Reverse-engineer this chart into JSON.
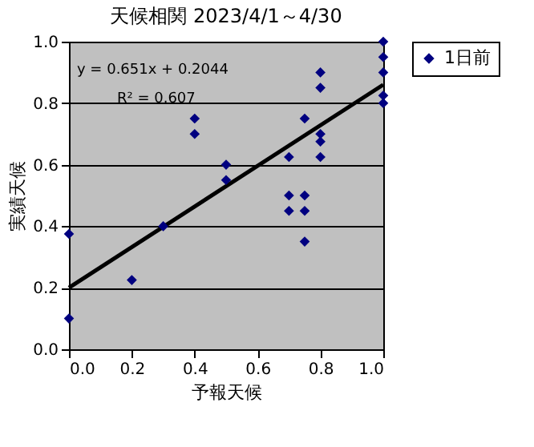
{
  "chart_data": {
    "type": "scatter",
    "title": "天候相関 2023/4/1～4/30",
    "xlabel": "予報天候",
    "ylabel": "実績天候",
    "series": [
      {
        "type": "line",
        "color": "#000000",
        "marker": "none",
        "line_style": "solid",
        "x": [
          0,
          1
        ],
        "values": [
          0.2,
          0.86
        ]
      },
      {
        "name": "1日前",
        "color": "#000080",
        "marker": "diamond",
        "x": [
          0,
          0,
          0.2,
          0.3,
          0.4,
          0.4,
          0.5,
          0.5,
          0.7,
          0.7,
          0.7,
          0.75,
          0.75,
          0.75,
          0.75,
          0.8,
          0.8,
          0.8,
          0.8,
          0.8,
          1,
          1,
          1,
          1,
          1
        ],
        "values": [
          0.375,
          0.1,
          0.225,
          0.4,
          0.75,
          0.7,
          0.6,
          0.55,
          0.625,
          0.5,
          0.45,
          0.75,
          0.5,
          0.45,
          0.35,
          0.9,
          0.85,
          0.7,
          0.675,
          0.625,
          1,
          0.95,
          0.9,
          0.825,
          0.8
        ]
      }
    ],
    "xlim": [
      0,
      1
    ],
    "ylim": [
      0,
      1
    ],
    "xticks": [
      {
        "value": 0,
        "label": "0.0"
      },
      {
        "value": 0.2,
        "label": "0.2"
      },
      {
        "value": 0.4,
        "label": "0.4"
      },
      {
        "value": 0.6,
        "label": "0.6"
      },
      {
        "value": 0.8,
        "label": "0.8"
      },
      {
        "value": 1,
        "label": "1.0"
      }
    ],
    "yticks": [
      {
        "value": 0,
        "label": "0.0"
      },
      {
        "value": 0.2,
        "label": "0.2"
      },
      {
        "value": 0.4,
        "label": "0.4"
      },
      {
        "value": 0.6,
        "label": "0.6"
      },
      {
        "value": 0.8,
        "label": "0.8"
      },
      {
        "value": 1,
        "label": "1.0"
      }
    ],
    "grid": "y",
    "legend": "right",
    "annotations": [
      "y = 0.651x + 0.2044",
      "R² = 0.607"
    ]
  }
}
